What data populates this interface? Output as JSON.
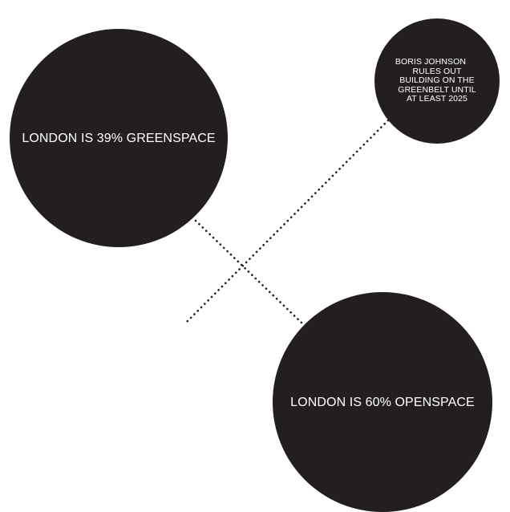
{
  "diagram": {
    "colors": {
      "bubble": "#231f20",
      "connector": "#231f20",
      "text": "#ffffff",
      "background": "#ffffff"
    },
    "bubbles": {
      "greenspace": {
        "label": "LONDON IS 39% GREENSPACE"
      },
      "johnson": {
        "lines": [
          "BORIS JOHNSON",
          "RULES OUT",
          "BUILDING ON THE",
          "GREENBELT UNTIL",
          "AT LEAST 2025"
        ]
      },
      "openspace": {
        "label": "LONDON IS 60% OPENSPACE"
      }
    }
  }
}
